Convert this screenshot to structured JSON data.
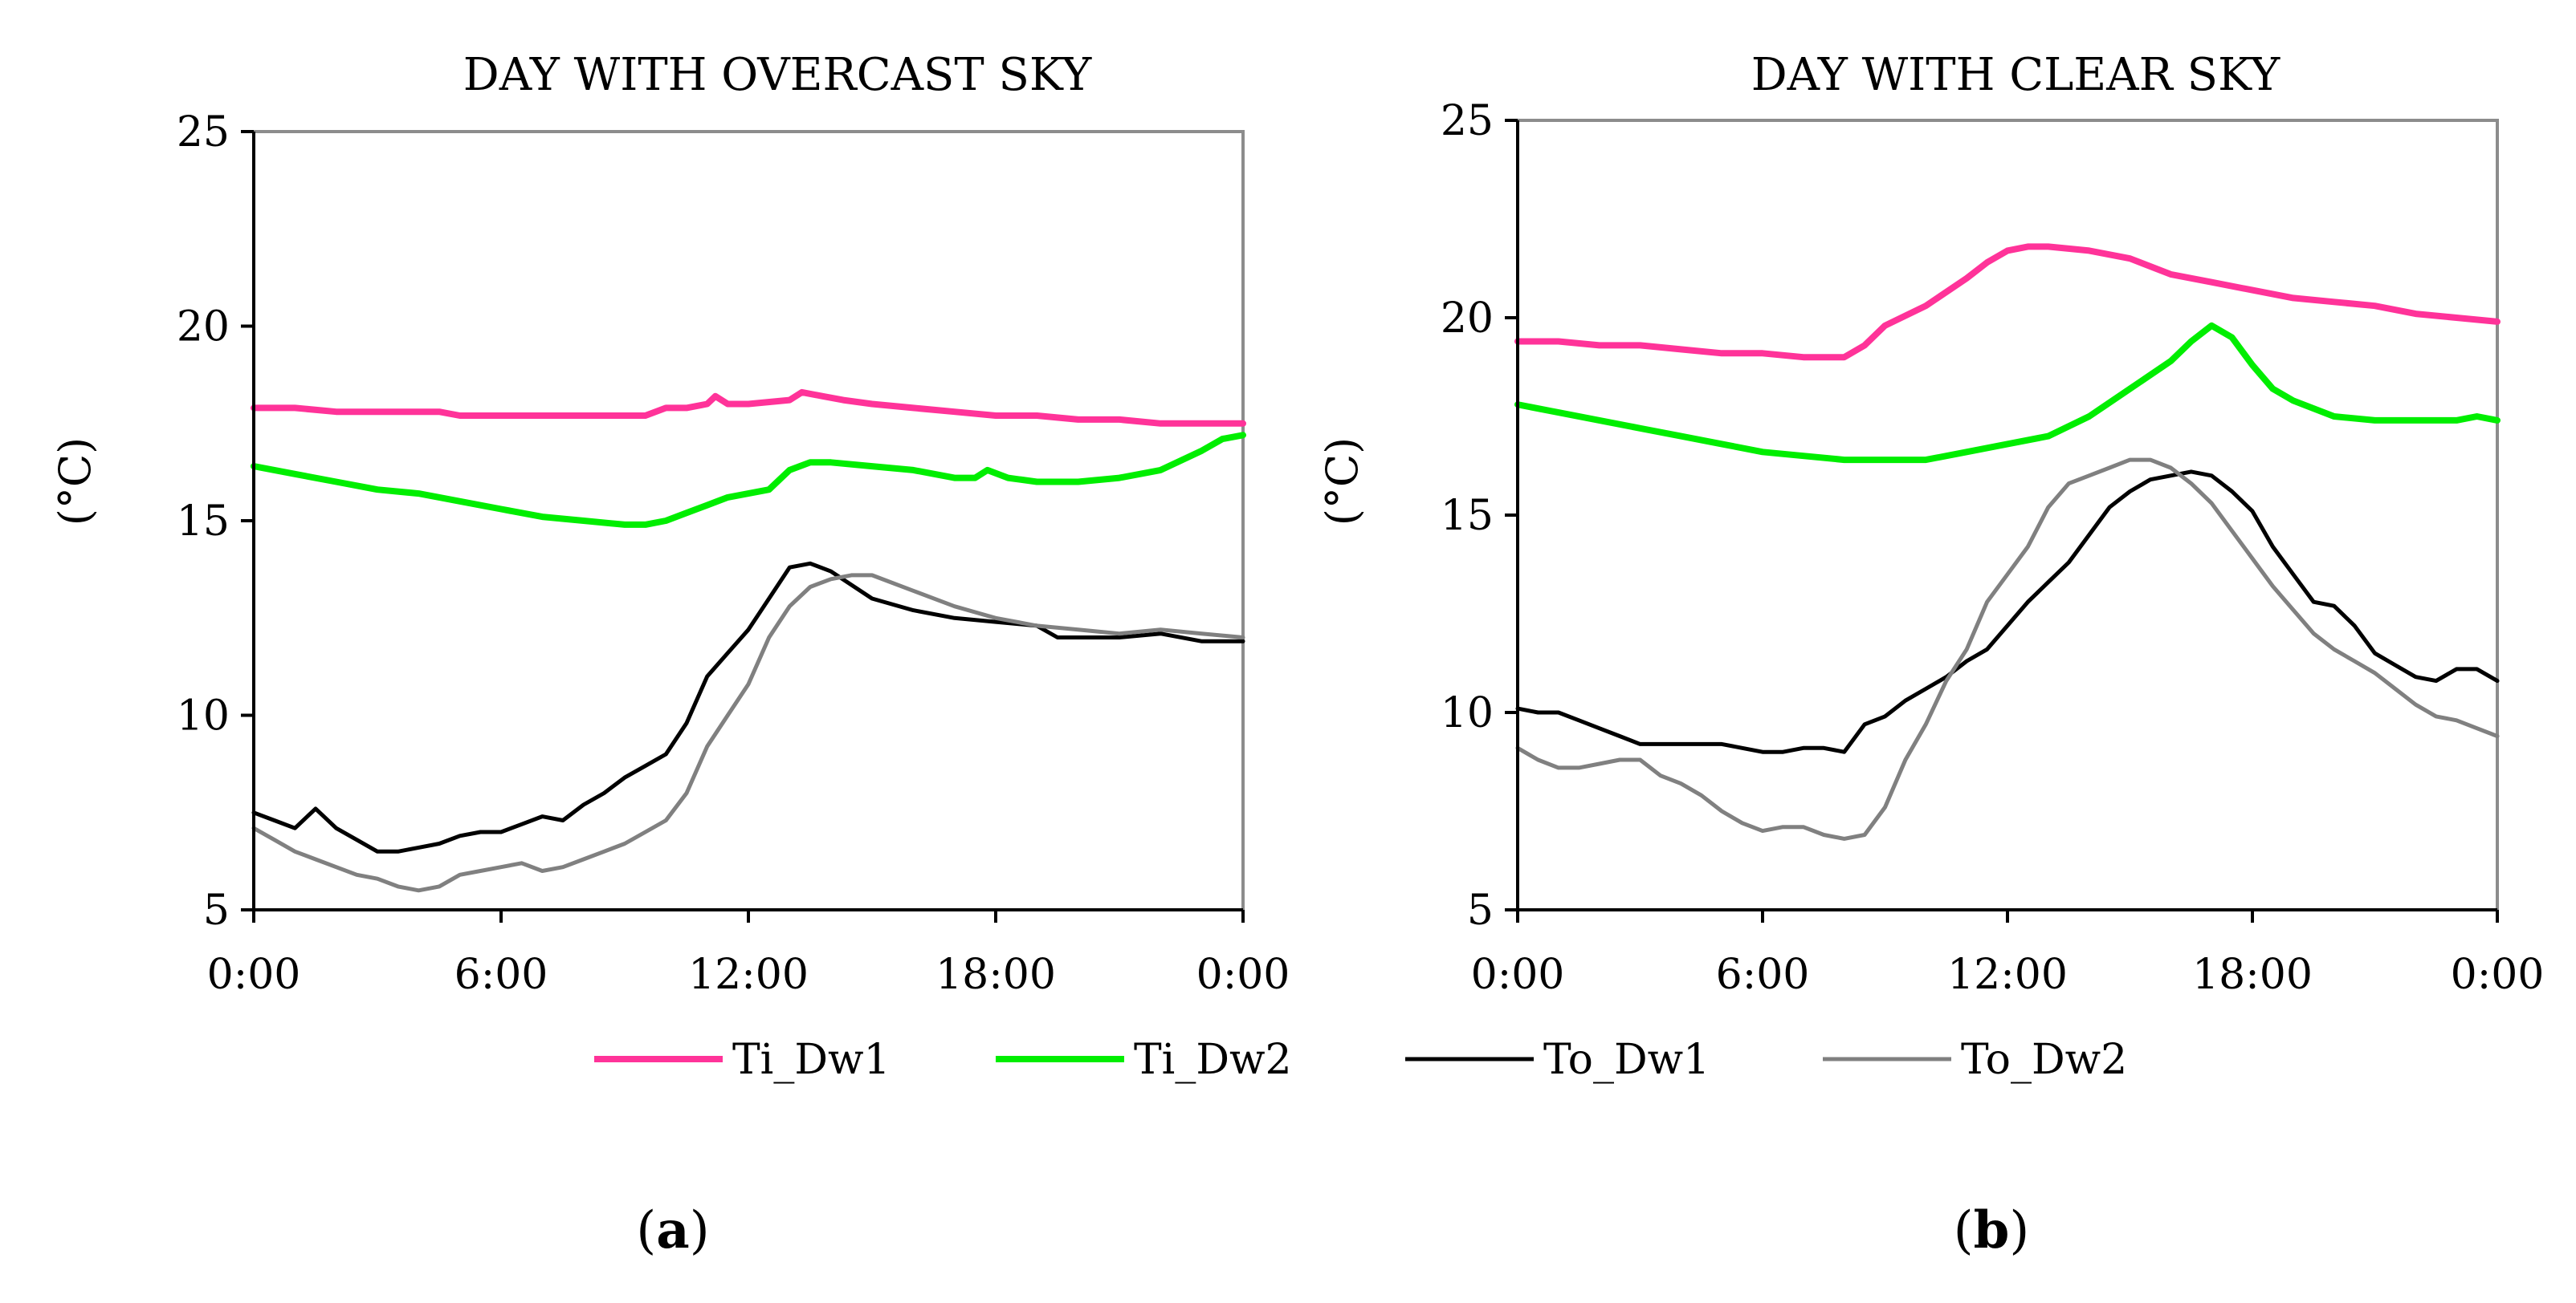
{
  "chart_data": [
    {
      "type": "line",
      "title": "DAY WITH OVERCAST SKY",
      "ylabel": "(°C)",
      "ylim": [
        5,
        25
      ],
      "yticks": [
        5,
        10,
        15,
        20,
        25
      ],
      "xlim": [
        0,
        24
      ],
      "xticks": [
        0,
        6,
        12,
        18,
        24
      ],
      "xtick_labels": [
        "0:00",
        "6:00",
        "12:00",
        "18:00",
        "0:00"
      ],
      "grid": false,
      "series": [
        {
          "name": "Ti_Dw1",
          "color": "#ff3399",
          "x": [
            0,
            1,
            2,
            3,
            4,
            4.5,
            5,
            6,
            7,
            8,
            9,
            9.5,
            10,
            10.5,
            11,
            11.2,
            11.5,
            12,
            13,
            13.3,
            13.8,
            14.3,
            15,
            16,
            17,
            18,
            19,
            20,
            21,
            22,
            23,
            24
          ],
          "values": [
            17.9,
            17.9,
            17.8,
            17.8,
            17.8,
            17.8,
            17.7,
            17.7,
            17.7,
            17.7,
            17.7,
            17.7,
            17.9,
            17.9,
            18.0,
            18.2,
            18.0,
            18.0,
            18.1,
            18.3,
            18.2,
            18.1,
            18.0,
            17.9,
            17.8,
            17.7,
            17.7,
            17.6,
            17.6,
            17.5,
            17.5,
            17.5
          ]
        },
        {
          "name": "Ti_Dw2",
          "color": "#00ee00",
          "x": [
            0,
            1,
            2,
            3,
            4,
            5,
            6,
            7,
            8,
            9,
            9.5,
            10,
            10.5,
            11,
            11.5,
            12,
            12.5,
            13,
            13.5,
            14,
            15,
            16,
            17,
            17.5,
            17.8,
            18.3,
            19,
            20,
            21,
            22,
            23,
            23.5,
            24
          ],
          "values": [
            16.4,
            16.2,
            16.0,
            15.8,
            15.7,
            15.5,
            15.3,
            15.1,
            15.0,
            14.9,
            14.9,
            15.0,
            15.2,
            15.4,
            15.6,
            15.7,
            15.8,
            16.3,
            16.5,
            16.5,
            16.4,
            16.3,
            16.1,
            16.1,
            16.3,
            16.1,
            16.0,
            16.0,
            16.1,
            16.3,
            16.8,
            17.1,
            17.2
          ]
        },
        {
          "name": "To_Dw1",
          "color": "#000000",
          "x": [
            0,
            0.5,
            1,
            1.5,
            2,
            2.5,
            3,
            3.5,
            4,
            4.5,
            5,
            5.5,
            6,
            6.5,
            7,
            7.5,
            8,
            8.5,
            9,
            9.5,
            10,
            10.5,
            11,
            11.5,
            12,
            12.5,
            13,
            13.5,
            14,
            15,
            16,
            17,
            18,
            19,
            19.5,
            20,
            21,
            22,
            23,
            24
          ],
          "values": [
            7.5,
            7.3,
            7.1,
            7.6,
            7.1,
            6.8,
            6.5,
            6.5,
            6.6,
            6.7,
            6.9,
            7.0,
            7.0,
            7.2,
            7.4,
            7.3,
            7.7,
            8.0,
            8.4,
            8.7,
            9.0,
            9.8,
            11.0,
            11.6,
            12.2,
            13.0,
            13.8,
            13.9,
            13.7,
            13.0,
            12.7,
            12.5,
            12.4,
            12.3,
            12.0,
            12.0,
            12.0,
            12.1,
            11.9,
            11.9
          ]
        },
        {
          "name": "To_Dw2",
          "color": "#808080",
          "x": [
            0,
            0.5,
            1,
            1.5,
            2,
            2.5,
            3,
            3.5,
            4,
            4.5,
            5,
            5.5,
            6,
            6.5,
            7,
            7.5,
            8,
            8.5,
            9,
            9.5,
            10,
            10.5,
            11,
            11.5,
            12,
            12.5,
            13,
            13.5,
            14,
            14.5,
            15,
            16,
            17,
            18,
            19,
            20,
            21,
            22,
            23,
            24
          ],
          "values": [
            7.1,
            6.8,
            6.5,
            6.3,
            6.1,
            5.9,
            5.8,
            5.6,
            5.5,
            5.6,
            5.9,
            6.0,
            6.1,
            6.2,
            6.0,
            6.1,
            6.3,
            6.5,
            6.7,
            7.0,
            7.3,
            8.0,
            9.2,
            10.0,
            10.8,
            12.0,
            12.8,
            13.3,
            13.5,
            13.6,
            13.6,
            13.2,
            12.8,
            12.5,
            12.3,
            12.2,
            12.1,
            12.2,
            12.1,
            12.0
          ]
        }
      ]
    },
    {
      "type": "line",
      "title": "DAY WITH CLEAR SKY",
      "ylabel": "(°C)",
      "ylim": [
        5,
        25
      ],
      "yticks": [
        5,
        10,
        15,
        20,
        25
      ],
      "xlim": [
        0,
        24
      ],
      "xticks": [
        0,
        6,
        12,
        18,
        24
      ],
      "xtick_labels": [
        "0:00",
        "6:00",
        "12:00",
        "18:00",
        "0:00"
      ],
      "grid": false,
      "series": [
        {
          "name": "Ti_Dw1",
          "color": "#ff3399",
          "x": [
            0,
            1,
            2,
            3,
            4,
            5,
            6,
            7,
            7.5,
            8,
            8.5,
            9,
            10,
            11,
            11.5,
            12,
            12.5,
            13,
            14,
            15,
            16,
            17,
            18,
            19,
            20,
            21,
            22,
            23,
            24
          ],
          "values": [
            19.4,
            19.4,
            19.3,
            19.3,
            19.2,
            19.1,
            19.1,
            19.0,
            19.0,
            19.0,
            19.3,
            19.8,
            20.3,
            21.0,
            21.4,
            21.7,
            21.8,
            21.8,
            21.7,
            21.5,
            21.1,
            20.9,
            20.7,
            20.5,
            20.4,
            20.3,
            20.1,
            20.0,
            19.9
          ]
        },
        {
          "name": "Ti_Dw2",
          "color": "#00ee00",
          "x": [
            0,
            1,
            2,
            3,
            4,
            5,
            6,
            7,
            8,
            9,
            10,
            11,
            12,
            13,
            14,
            15,
            16,
            16.5,
            17,
            17.5,
            18,
            18.5,
            19,
            20,
            21,
            22,
            23,
            23.5,
            24
          ],
          "values": [
            17.8,
            17.6,
            17.4,
            17.2,
            17.0,
            16.8,
            16.6,
            16.5,
            16.4,
            16.4,
            16.4,
            16.6,
            16.8,
            17.0,
            17.5,
            18.2,
            18.9,
            19.4,
            19.8,
            19.5,
            18.8,
            18.2,
            17.9,
            17.5,
            17.4,
            17.4,
            17.4,
            17.5,
            17.4
          ]
        },
        {
          "name": "To_Dw1",
          "color": "#000000",
          "x": [
            0,
            0.5,
            1,
            1.5,
            2,
            2.5,
            3,
            4,
            5,
            5.5,
            6,
            6.5,
            7,
            7.5,
            8,
            8.5,
            9,
            9.5,
            10,
            10.5,
            11,
            11.5,
            12,
            12.5,
            13,
            13.5,
            14,
            14.5,
            15,
            15.5,
            16,
            16.5,
            17,
            17.5,
            18,
            18.5,
            19,
            19.5,
            20,
            20.5,
            21,
            21.5,
            22,
            22.5,
            23,
            23.5,
            24
          ],
          "values": [
            10.1,
            10.0,
            10.0,
            9.8,
            9.6,
            9.4,
            9.2,
            9.2,
            9.2,
            9.1,
            9.0,
            9.0,
            9.1,
            9.1,
            9.0,
            9.7,
            9.9,
            10.3,
            10.6,
            10.9,
            11.3,
            11.6,
            12.2,
            12.8,
            13.3,
            13.8,
            14.5,
            15.2,
            15.6,
            15.9,
            16.0,
            16.1,
            16.0,
            15.6,
            15.1,
            14.2,
            13.5,
            12.8,
            12.7,
            12.2,
            11.5,
            11.2,
            10.9,
            10.8,
            11.1,
            11.1,
            10.8
          ]
        },
        {
          "name": "To_Dw2",
          "color": "#808080",
          "x": [
            0,
            0.5,
            1,
            1.5,
            2,
            2.5,
            3,
            3.5,
            4,
            4.5,
            5,
            5.5,
            6,
            6.5,
            7,
            7.5,
            8,
            8.5,
            9,
            9.5,
            10,
            10.5,
            11,
            11.5,
            12,
            12.5,
            13,
            13.5,
            14,
            14.5,
            15,
            15.5,
            16,
            16.5,
            17,
            17.5,
            18,
            18.5,
            19,
            19.5,
            20,
            20.5,
            21,
            21.5,
            22,
            22.5,
            23,
            23.5,
            24
          ],
          "values": [
            9.1,
            8.8,
            8.6,
            8.6,
            8.7,
            8.8,
            8.8,
            8.4,
            8.2,
            7.9,
            7.5,
            7.2,
            7.0,
            7.1,
            7.1,
            6.9,
            6.8,
            6.9,
            7.6,
            8.8,
            9.7,
            10.8,
            11.6,
            12.8,
            13.5,
            14.2,
            15.2,
            15.8,
            16.0,
            16.2,
            16.4,
            16.4,
            16.2,
            15.8,
            15.3,
            14.6,
            13.9,
            13.2,
            12.6,
            12.0,
            11.6,
            11.3,
            11.0,
            10.6,
            10.2,
            9.9,
            9.8,
            9.6,
            9.4
          ]
        }
      ]
    }
  ],
  "legend": [
    {
      "label": "Ti_Dw1",
      "color": "#ff3399"
    },
    {
      "label": "Ti_Dw2",
      "color": "#00ee00"
    },
    {
      "label": "To_Dw1",
      "color": "#000000"
    },
    {
      "label": "To_Dw2",
      "color": "#808080"
    }
  ],
  "panel_labels": [
    "a",
    "b"
  ]
}
